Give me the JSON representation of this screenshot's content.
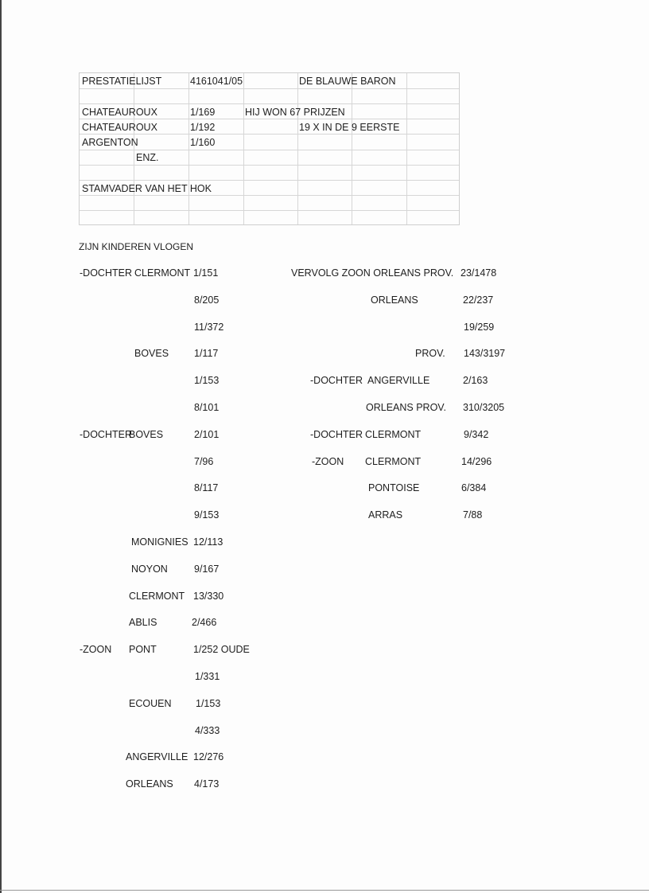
{
  "table": {
    "title": "PRESTATIELIJST",
    "ring": "4161041/05",
    "name": "DE BLAUWE BARON",
    "rows": [
      {
        "race": "CHATEAUROUX",
        "result": "1/169",
        "note": "HIJ WON 67 PRIJZEN"
      },
      {
        "race": "CHATEAUROUX",
        "result": "1/192",
        "note": "19 X IN DE 9 EERSTE"
      },
      {
        "race": "ARGENTON",
        "result": "1/160",
        "note": ""
      }
    ],
    "etc": "ENZ.",
    "footer": "STAMVADER VAN HET HOK"
  },
  "children_heading": "ZIJN KINDEREN VLOGEN",
  "left_entries": [
    [
      "-DOCHTER",
      "CLERMONT",
      "1/151"
    ],
    [
      "",
      "",
      "8/205"
    ],
    [
      "",
      "",
      "11/372"
    ],
    [
      "",
      "BOVES",
      "1/117"
    ],
    [
      "",
      "",
      "1/153"
    ],
    [
      "",
      "",
      "8/101"
    ],
    [
      "-DOCHTER",
      "BOVES",
      "2/101"
    ],
    [
      "",
      "",
      "7/96"
    ],
    [
      "",
      "",
      "8/117"
    ],
    [
      "",
      "",
      "9/153"
    ],
    [
      "",
      "MONIGNIES",
      "12/113"
    ],
    [
      "",
      "NOYON",
      "9/167"
    ],
    [
      "",
      "CLERMONT",
      "13/330"
    ],
    [
      "",
      "ABLIS",
      "2/466"
    ],
    [
      "-ZOON",
      "PONT",
      "1/252 OUDE"
    ],
    [
      "",
      "",
      "1/331"
    ],
    [
      "",
      "ECOUEN",
      "1/153"
    ],
    [
      "",
      "",
      "4/333"
    ],
    [
      "",
      "ANGERVILLE",
      "12/276"
    ],
    [
      "",
      "ORLEANS",
      "4/173"
    ]
  ],
  "right_entries": [
    [
      "",
      "VERVOLG ZOON ORLEANS  PROV.",
      "23/1478"
    ],
    [
      "",
      "ORLEANS",
      "22/237"
    ],
    [
      "",
      "",
      "19/259"
    ],
    [
      "",
      "PROV.",
      "143/3197"
    ],
    [
      "-DOCHTER",
      "ANGERVILLE",
      "2/163"
    ],
    [
      "",
      "ORLEANS PROV.",
      "310/3205"
    ],
    [
      "-DOCHTER",
      "CLERMONT",
      "9/342"
    ],
    [
      "-ZOON",
      "CLERMONT",
      "14/296"
    ],
    [
      "",
      "PONTOISE",
      "6/384"
    ],
    [
      "",
      "ARRAS",
      "7/88"
    ]
  ]
}
